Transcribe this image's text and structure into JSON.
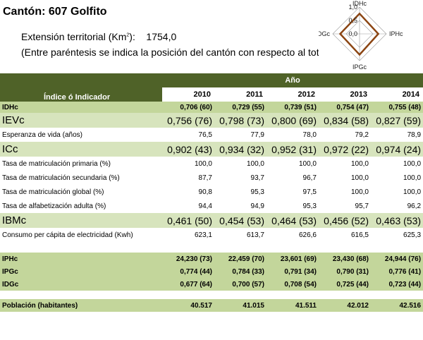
{
  "title": "Cantón: 607 Golfito",
  "extension": {
    "label": "Extensión territorial (Km",
    "sup": "2",
    "suffix": "):",
    "value": "1754,0"
  },
  "note": "(Entre paréntesis se indica la posición del cantón con respecto al tot                        hes)",
  "radar": {
    "axes": [
      "IDHc",
      "IPHc",
      "IPGc",
      "IDGc"
    ],
    "ticks": [
      "1,0",
      "0,5",
      "0,0"
    ],
    "values": [
      0.755,
      0.7,
      0.776,
      0.723
    ],
    "colors": {
      "series": "#8b4513",
      "grid": "#999999"
    }
  },
  "table": {
    "header_label": "Índice ó Indicador",
    "group_label": "Año",
    "years": [
      "2010",
      "2011",
      "2012",
      "2013",
      "2014"
    ],
    "rows": [
      {
        "type": "idhc",
        "label": "IDHc",
        "values": [
          "0,706 (60)",
          "0,729 (55)",
          "0,739 (51)",
          "0,754 (47)",
          "0,755 (48)"
        ]
      },
      {
        "type": "big",
        "label": "IEVc",
        "values": [
          "0,756 (76)",
          "0,798 (73)",
          "0,800 (69)",
          "0,834 (58)",
          "0,827 (59)"
        ]
      },
      {
        "type": "plain",
        "label": "Esperanza de vida (años)",
        "values": [
          "76,5",
          "77,9",
          "78,0",
          "79,2",
          "78,9"
        ]
      },
      {
        "type": "big",
        "label": "ICc",
        "values": [
          "0,902 (43)",
          "0,934 (32)",
          "0,952 (31)",
          "0,972 (22)",
          "0,974 (24)"
        ]
      },
      {
        "type": "plain",
        "label": "Tasa de matriculación primaria (%)",
        "values": [
          "100,0",
          "100,0",
          "100,0",
          "100,0",
          "100,0"
        ]
      },
      {
        "type": "plain",
        "label": "Tasa de matriculación secundaria (%)",
        "values": [
          "87,7",
          "93,7",
          "96,7",
          "100,0",
          "100,0"
        ]
      },
      {
        "type": "plain",
        "label": "Tasa de matriculación global (%)",
        "values": [
          "90,8",
          "95,3",
          "97,5",
          "100,0",
          "100,0"
        ]
      },
      {
        "type": "plain",
        "label": "Tasa de alfabetización adulta (%)",
        "values": [
          "94,4",
          "94,9",
          "95,3",
          "95,7",
          "96,2"
        ]
      },
      {
        "type": "big",
        "label": "IBMc",
        "values": [
          "0,461 (50)",
          "0,454 (53)",
          "0,464 (53)",
          "0,456 (52)",
          "0,463 (53)"
        ]
      },
      {
        "type": "plain",
        "label": "Consumo per cápita de electricidad (Kwh)",
        "values": [
          "623,1",
          "613,7",
          "626,6",
          "616,5",
          "625,3"
        ]
      },
      {
        "type": "spacer"
      },
      {
        "type": "bold",
        "label": "IPHc",
        "values": [
          "24,230 (73)",
          "22,459 (70)",
          "23,601 (69)",
          "23,430 (68)",
          "24,944 (76)"
        ]
      },
      {
        "type": "bold",
        "label": "IPGc",
        "values": [
          "0,774 (44)",
          "0,784 (33)",
          "0,791 (34)",
          "0,790 (31)",
          "0,776 (41)"
        ]
      },
      {
        "type": "bold",
        "label": "IDGc",
        "values": [
          "0,677 (64)",
          "0,700 (57)",
          "0,708 (54)",
          "0,725 (44)",
          "0,723 (44)"
        ]
      },
      {
        "type": "gap"
      },
      {
        "type": "bold",
        "label": "Población (habitantes)",
        "values": [
          "40.517",
          "41.015",
          "41.511",
          "42.012",
          "42.516"
        ]
      }
    ]
  }
}
